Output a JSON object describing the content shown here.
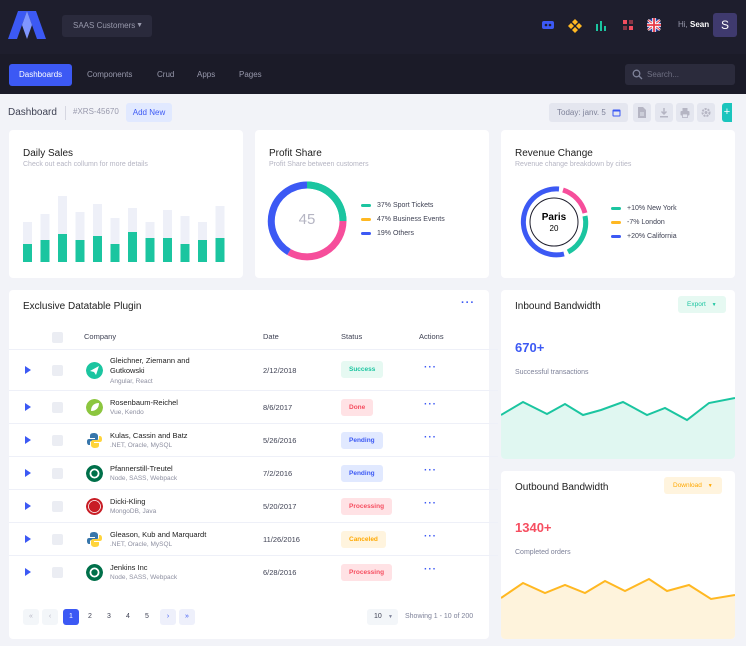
{
  "header": {
    "project_select": "SAAS Customers",
    "greeting_prefix": "Hi,",
    "user_name": "Sean",
    "avatar_initial": "S"
  },
  "nav": {
    "items": [
      {
        "label": "Dashboards",
        "active": true
      },
      {
        "label": "Components",
        "active": false
      },
      {
        "label": "Crud",
        "active": false
      },
      {
        "label": "Apps",
        "active": false
      },
      {
        "label": "Pages",
        "active": false
      }
    ],
    "search_placeholder": "Search..."
  },
  "subheader": {
    "title": "Dashboard",
    "code": "#XRS-45670",
    "add_label": "Add New",
    "date_label": "Today: janv. 5"
  },
  "daily_sales": {
    "title": "Daily Sales",
    "subtitle": "Check out each collumn for more details",
    "bar_color": "#1bc5a0",
    "back_color": "#eef0f8"
  },
  "profit_share": {
    "title": "Profit Share",
    "subtitle": "Profit Share between customers",
    "center_value": "45",
    "legend": [
      {
        "label": "37% Sport Tickets",
        "color": "#1bc5a0"
      },
      {
        "label": "47% Business Events",
        "color": "#ffb822"
      },
      {
        "label": "19% Others",
        "color": "#3c59f4"
      }
    ]
  },
  "revenue_change": {
    "title": "Revenue Change",
    "subtitle": "Revenue change breakdown by cities",
    "center_label": "Paris",
    "center_value": "20",
    "legend": [
      {
        "label": "+10% New York",
        "color": "#1bc5a0"
      },
      {
        "label": "-7% London",
        "color": "#ffb822"
      },
      {
        "label": "+20% California",
        "color": "#3c59f4"
      }
    ]
  },
  "datatable": {
    "title": "Exclusive Datatable Plugin",
    "columns": [
      "Company",
      "Date",
      "Status",
      "Actions"
    ],
    "rows": [
      {
        "name": "Gleichner, Ziemann and Gutkowski",
        "tech": "Angular, React",
        "date": "2/12/2018",
        "status": "Success",
        "status_color": "#1bc5a0",
        "status_bg": "#e6f9f2",
        "logo": "paper-plane-logo"
      },
      {
        "name": "Rosenbaum-Reichel",
        "tech": "Vue, Kendo",
        "date": "8/6/2017",
        "status": "Done",
        "status_color": "#f64e60",
        "status_bg": "#ffe2e5",
        "logo": "leaf-logo"
      },
      {
        "name": "Kulas, Cassin and Batz",
        "tech": ".NET, Oracle, MySQL",
        "date": "5/26/2016",
        "status": "Pending",
        "status_color": "#3c59f4",
        "status_bg": "#e1e9ff",
        "logo": "python-logo"
      },
      {
        "name": "Pfannerstill-Treutel",
        "tech": "Node, SASS, Webpack",
        "date": "7/2/2016",
        "status": "Pending",
        "status_color": "#3c59f4",
        "status_bg": "#e1e9ff",
        "logo": "starbucks-logo"
      },
      {
        "name": "Dicki-Kling",
        "tech": "MongoDB, Java",
        "date": "5/20/2017",
        "status": "Processing",
        "status_color": "#f64e60",
        "status_bg": "#ffe2e5",
        "logo": "cjnet-logo"
      },
      {
        "name": "Gleason, Kub and Marquardt",
        "tech": ".NET, Oracle, MySQL",
        "date": "11/26/2016",
        "status": "Canceled",
        "status_color": "#ffa800",
        "status_bg": "#fff4de",
        "logo": "python-logo"
      },
      {
        "name": "Jenkins Inc",
        "tech": "Node, SASS, Webpack",
        "date": "6/28/2016",
        "status": "Processing",
        "status_color": "#f64e60",
        "status_bg": "#ffe2e5",
        "logo": "starbucks-logo"
      }
    ],
    "pages": [
      "1",
      "2",
      "3",
      "4",
      "5"
    ],
    "first_label": "«",
    "prev_label": "‹",
    "next_label": "›",
    "last_label": "»",
    "page_size": "10",
    "showing": "Showing 1 - 10 of 200"
  },
  "inbound": {
    "title": "Inbound Bandwidth",
    "button": "Export",
    "value": "670+",
    "label": "Successful transactions",
    "color": "#1bc5a0"
  },
  "outbound": {
    "title": "Outbound Bandwidth",
    "button": "Download",
    "value": "1340+",
    "label": "Completed orders",
    "color": "#ffb822"
  }
}
